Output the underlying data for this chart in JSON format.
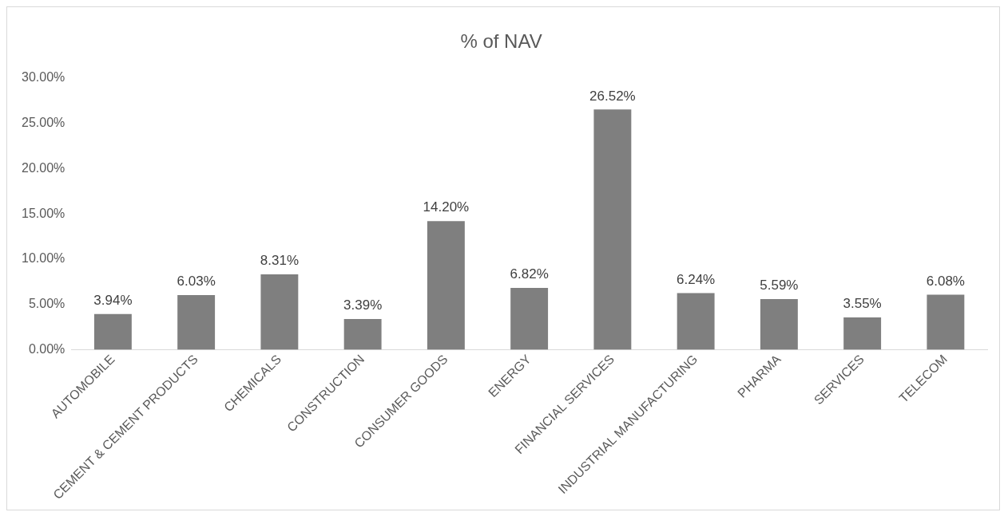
{
  "chart_data": {
    "type": "bar",
    "title": "% of NAV",
    "categories": [
      "AUTOMOBILE",
      "CEMENT & CEMENT PRODUCTS",
      "CHEMICALS",
      "CONSTRUCTION",
      "CONSUMER GOODS",
      "ENERGY",
      "FINANCIAL SERVICES",
      "INDUSTRIAL MANUFACTURING",
      "PHARMA",
      "SERVICES",
      "TELECOM"
    ],
    "values": [
      3.94,
      6.03,
      8.31,
      3.39,
      14.2,
      6.82,
      26.52,
      6.24,
      5.59,
      3.55,
      6.08
    ],
    "value_labels": [
      "3.94%",
      "6.03%",
      "8.31%",
      "3.39%",
      "14.20%",
      "6.82%",
      "26.52%",
      "6.24%",
      "5.59%",
      "3.55%",
      "6.08%"
    ],
    "color": "#7f7f7f",
    "ylim": [
      0,
      30
    ],
    "yticks": [
      {
        "value": 0,
        "label": "0.00%"
      },
      {
        "value": 5,
        "label": "5.00%"
      },
      {
        "value": 10,
        "label": "10.00%"
      },
      {
        "value": 15,
        "label": "15.00%"
      },
      {
        "value": 20,
        "label": "20.00%"
      },
      {
        "value": 25,
        "label": "25.00%"
      },
      {
        "value": 30,
        "label": "30.00%"
      }
    ],
    "grid": false,
    "legend": false
  }
}
